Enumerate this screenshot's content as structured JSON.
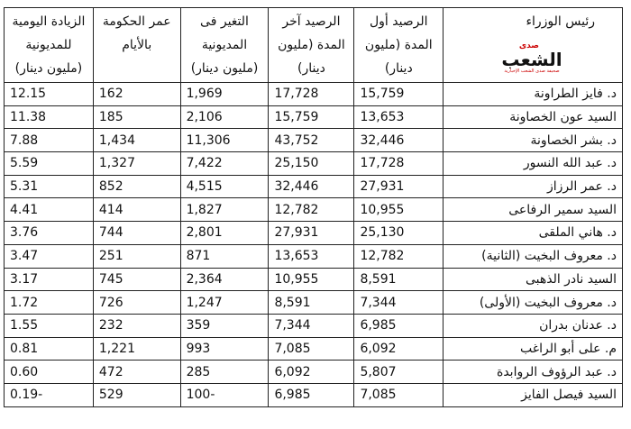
{
  "headers": [
    "رئيس الوزراء",
    "الرصيد أول المدة (مليون دينار)",
    "الرصيد آخر المدة (مليون دينار)",
    "التغير فى المديونية (مليون دينار)",
    "عمر الحكومة بالأيام",
    "الزيادة اليومية للمديونية (مليون دينار)"
  ],
  "rows": [
    [
      "د. فايز الطراونة",
      "15,759",
      "17,728",
      "1,969",
      "162",
      "12.15"
    ],
    [
      "السيد عون الخصاونة",
      "13,653",
      "15,759",
      "2,106",
      "185",
      "11.38"
    ],
    [
      "د. بشر الخصاونة",
      "32,446",
      "43,752",
      "11,306",
      "1,434",
      "7.88"
    ],
    [
      "د. عبد الله النسور",
      "17,728",
      "25,150",
      "7,422",
      "1,327",
      "5.59"
    ],
    [
      "د. عمر الرزاز",
      "27,931",
      "32,446",
      "4,515",
      "852",
      "5.31"
    ],
    [
      "السيد سمير الرفاعى",
      "10,955",
      "12,782",
      "1,827",
      "414",
      "4.41"
    ],
    [
      "د. هاني الملقى",
      "25,130",
      "27,931",
      "2,801",
      "744",
      "3.76"
    ],
    [
      "د. معروف البخيت (الثانية)",
      "12,782",
      "13,653",
      "871",
      "251",
      "3.47"
    ],
    [
      "السيد نادر الذهبى",
      "8,591",
      "10,955",
      "2,364",
      "745",
      "3.17"
    ],
    [
      "د. معروف البخيت (الأولى)",
      "7,344",
      "8,591",
      "1,247",
      "726",
      "1.72"
    ],
    [
      "د. عدنان بدران",
      "6,985",
      "7,344",
      "359",
      "232",
      "1.55"
    ],
    [
      "م. على أبو الراغب",
      "6,092",
      "7,085",
      "993",
      "1,221",
      "0.81"
    ],
    [
      "د. عبد الرؤوف الروابدة",
      "5,807",
      "6,092",
      "285",
      "472",
      "0.60"
    ],
    [
      "السيد فيصل الفايز",
      "7,085",
      "6,985",
      "-100",
      "529",
      "-0.19"
    ]
  ],
  "logo": {
    "top": "صدى",
    "main": "الشعب",
    "tagline": "صحيفة صدى الشعب الإخبارية"
  }
}
